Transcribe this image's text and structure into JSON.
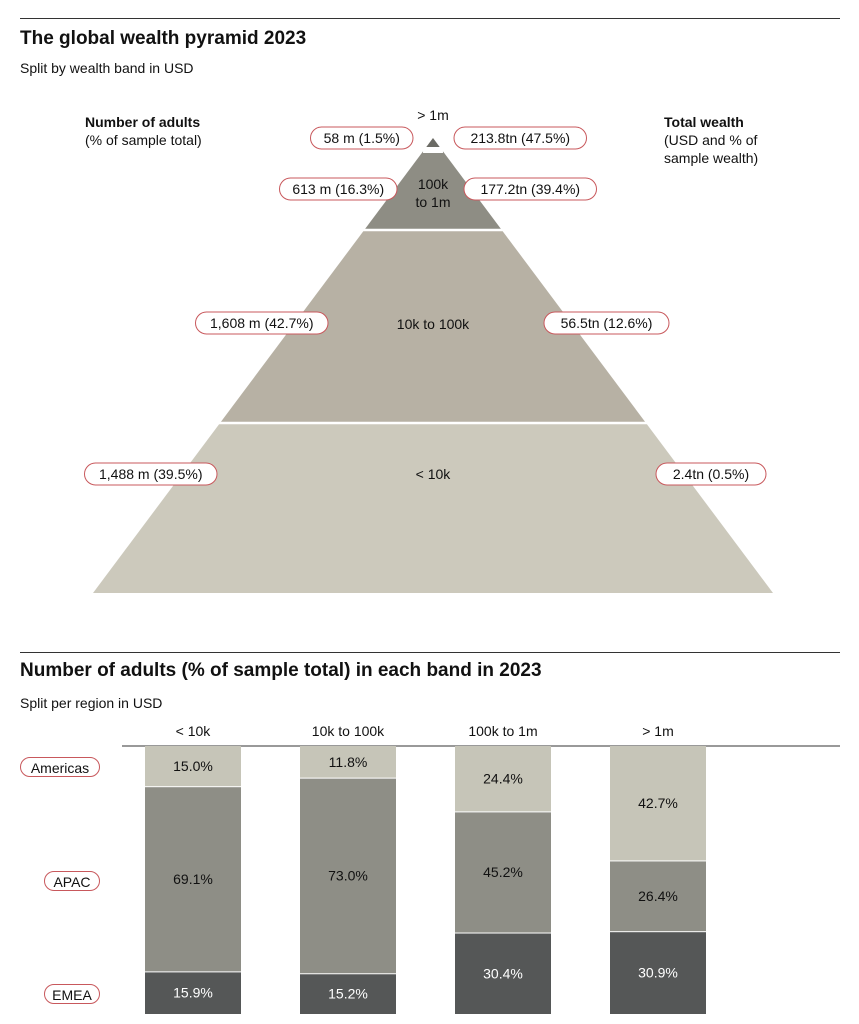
{
  "pyramid": {
    "title": "The global wealth pyramid 2023",
    "subtitle": "Split by wealth band in USD",
    "left_header": {
      "title": "Number of adults",
      "subtitle": "(% of sample total)"
    },
    "right_header": {
      "title": "Total wealth",
      "subtitle_lines": [
        "(USD and % of",
        "sample wealth)"
      ]
    }
  },
  "regions_chart": {
    "title": "Number of adults (% of sample total) in each band in 2023",
    "subtitle": "Split per region in USD",
    "regions": [
      "Americas",
      "APAC",
      "EMEA"
    ]
  },
  "colors": {
    "tier_top": "#6b6b65",
    "tier_upper": "#8e8d84",
    "tier_middle": "#b7b1a4",
    "tier_base": "#ccc9bc",
    "pill_border": "#c8585c",
    "americas": "#c6c5b8",
    "apac": "#8e8e86",
    "emea": "#555757"
  },
  "chart_data": [
    {
      "type": "pyramid",
      "title": "The global wealth pyramid 2023",
      "subtitle": "Split by wealth band in USD",
      "tiers": [
        {
          "band": "> 1m",
          "adults": "58 m (1.5%)",
          "adults_millions": 58,
          "adults_pct": 1.5,
          "wealth": "213.8tn (47.5%)",
          "wealth_tn": 213.8,
          "wealth_pct": 47.5
        },
        {
          "band": "100k to 1m",
          "band_lines": [
            "100k",
            "to 1m"
          ],
          "adults": "613 m (16.3%)",
          "adults_millions": 613,
          "adults_pct": 16.3,
          "wealth": "177.2tn (39.4%)",
          "wealth_tn": 177.2,
          "wealth_pct": 39.4
        },
        {
          "band": "10k to 100k",
          "adults": "1,608 m (42.7%)",
          "adults_millions": 1608,
          "adults_pct": 42.7,
          "wealth": "56.5tn (12.6%)",
          "wealth_tn": 56.5,
          "wealth_pct": 12.6
        },
        {
          "band": "< 10k",
          "adults": "1,488 m (39.5%)",
          "adults_millions": 1488,
          "adults_pct": 39.5,
          "wealth": "2.4tn (0.5%)",
          "wealth_tn": 2.4,
          "wealth_pct": 0.5
        }
      ]
    },
    {
      "type": "bar",
      "stacked": true,
      "title": "Number of adults (% of sample total) in each band in 2023",
      "subtitle": "Split per region in USD",
      "categories": [
        "< 10k",
        "10k to 100k",
        "100k to 1m",
        "> 1m"
      ],
      "series": [
        {
          "name": "Americas",
          "values": [
            15.0,
            11.8,
            24.4,
            42.7
          ],
          "labels": [
            "15.0%",
            "11.8%",
            "24.4%",
            "42.7%"
          ]
        },
        {
          "name": "APAC",
          "values": [
            69.1,
            73.0,
            45.2,
            26.4
          ],
          "labels": [
            "69.1%",
            "73.0%",
            "45.2%",
            "26.4%"
          ]
        },
        {
          "name": "EMEA",
          "values": [
            15.9,
            15.2,
            30.4,
            30.9
          ],
          "labels": [
            "15.9%",
            "15.2%",
            "30.4%",
            "30.9%"
          ]
        }
      ],
      "ylim": [
        0,
        100
      ]
    }
  ]
}
